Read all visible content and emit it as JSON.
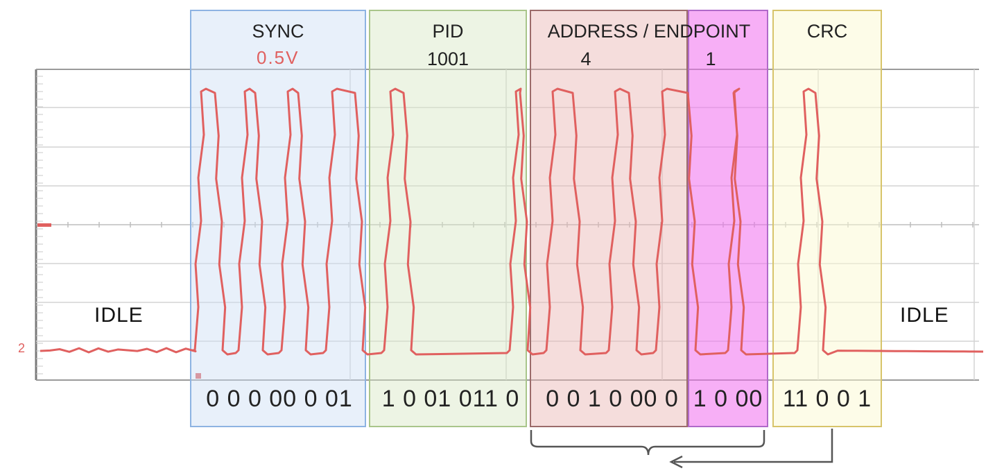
{
  "idle_labels": {
    "left": "IDLE",
    "right": "IDLE"
  },
  "voltage_label": "0.5V",
  "fields": [
    {
      "id": "sync",
      "title": "SYNC",
      "value": "",
      "bits": "0 0 0 00 0 01",
      "fill": "#e9f0fb",
      "stroke": "#8db3e2"
    },
    {
      "id": "pid",
      "title": "PID",
      "value": "1001",
      "bits": "1 0 01 011 0",
      "fill": "#edf3e4",
      "stroke": "#a9c58a"
    },
    {
      "id": "address",
      "title": "ADDRESS / ENDPOINT",
      "value": "4",
      "bits": "0 0 1 0 00 0",
      "fill": "#f4dedd",
      "stroke": "#9b6b6a"
    },
    {
      "id": "endpoint",
      "title": "",
      "value": "1",
      "bits": "1 0 00",
      "fill": "#f4a6f2",
      "stroke": "#b069c9"
    },
    {
      "id": "crc",
      "title": "CRC",
      "value": "",
      "bits": "11 0 0 1",
      "fill": "#fdfce6",
      "stroke": "#d7c46a"
    }
  ],
  "colors": {
    "signal": "#e0605f",
    "grid": "#d4d4d4",
    "frame": "#7a7a7a",
    "bracket": "#555555"
  },
  "icons": {
    "bracket": "curly-brace-under",
    "arrow": "left-arrow"
  }
}
